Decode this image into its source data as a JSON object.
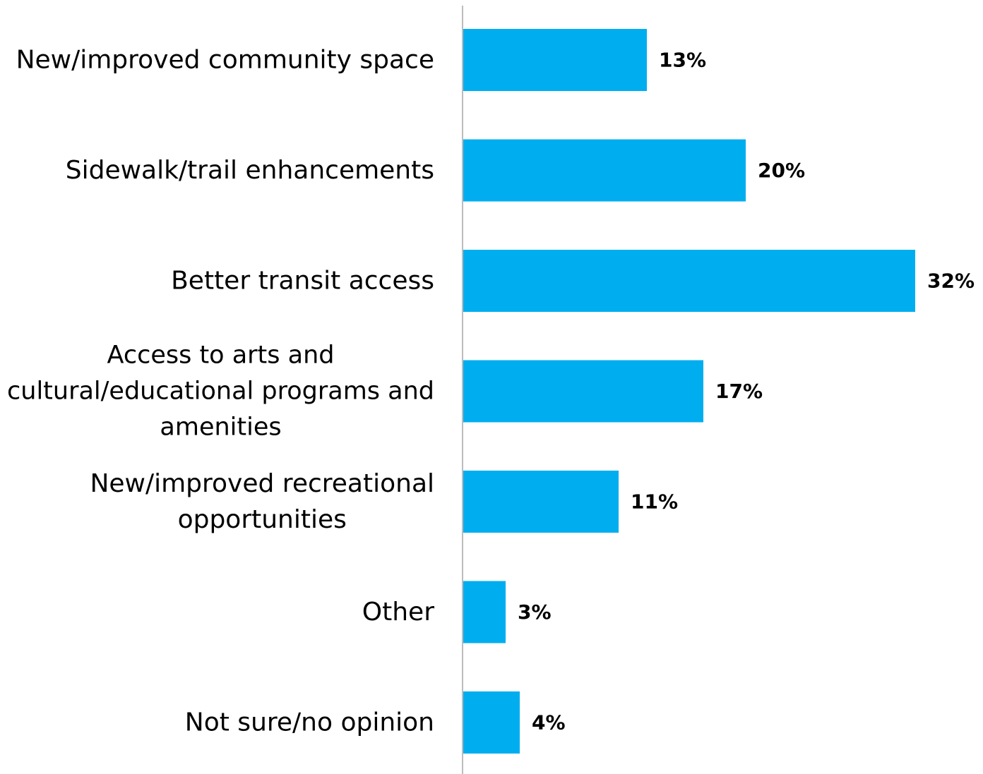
{
  "chart_data": {
    "type": "bar",
    "orientation": "horizontal",
    "categories": [
      [
        "New/improved community space"
      ],
      [
        "Sidewalk/trail enhancements"
      ],
      [
        "Better transit access"
      ],
      [
        "Access to arts and",
        "cultural/educational programs and",
        "amenities"
      ],
      [
        "New/improved recreational",
        "opportunities"
      ],
      [
        "Other"
      ],
      [
        "Not sure/no opinion"
      ]
    ],
    "values": [
      13,
      20,
      32,
      17,
      11,
      3,
      4
    ],
    "value_labels": [
      "13%",
      "20%",
      "32%",
      "17%",
      "11%",
      "3%",
      "4%"
    ],
    "unit": "%",
    "xlim": [
      0,
      32
    ],
    "grid": false,
    "legend": "none",
    "colors": {
      "bar": "#00AEEF",
      "axis": "#A6A6A6",
      "text": "#000000"
    }
  }
}
